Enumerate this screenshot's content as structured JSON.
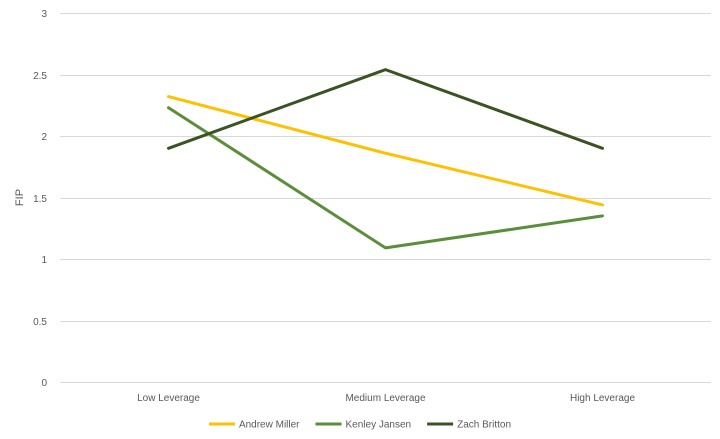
{
  "chart_data": {
    "type": "line",
    "title": "",
    "xlabel": "",
    "ylabel": "FIP",
    "ylim": [
      0,
      3
    ],
    "yticks": [
      0,
      0.5,
      1,
      1.5,
      2,
      2.5,
      3
    ],
    "ytick_labels": [
      "0",
      "0.5",
      "1",
      "1.5",
      "2",
      "2.5",
      "3"
    ],
    "grid": true,
    "legend_position": "bottom",
    "categories": [
      "Low Leverage",
      "Medium Leverage",
      "High Leverage"
    ],
    "series": [
      {
        "name": "Andrew Miller",
        "color": "#FFC000",
        "values": [
          2.32,
          1.86,
          1.44
        ]
      },
      {
        "name": "Kenley Jansen",
        "color": "#5B8E3A",
        "values": [
          2.23,
          1.09,
          1.35
        ]
      },
      {
        "name": "Zach Britton",
        "color": "#3B5323",
        "values": [
          1.9,
          2.54,
          1.9
        ]
      }
    ]
  }
}
